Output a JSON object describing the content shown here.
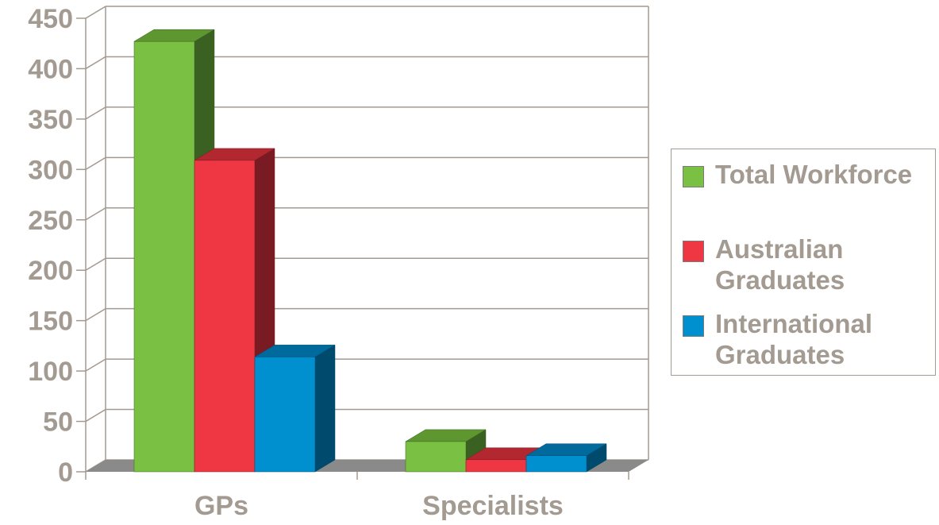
{
  "chart_data": {
    "type": "bar",
    "title": "",
    "xlabel": "",
    "ylabel": "",
    "categories": [
      "GPs",
      "Specialists"
    ],
    "series": [
      {
        "name": "Total Workforce",
        "values": [
          427,
          30
        ],
        "color": "#7ac143",
        "side_color": "#3b6122",
        "top_color": "#5e9630"
      },
      {
        "name": "Australian Graduates",
        "values": [
          309,
          12
        ],
        "color": "#ee3742",
        "side_color": "#7a1a22",
        "top_color": "#b32830"
      },
      {
        "name": "International Graduates",
        "values": [
          114,
          16
        ],
        "color": "#0090cf",
        "side_color": "#004a6e",
        "top_color": "#006a9c"
      }
    ],
    "ylim": [
      0,
      450
    ],
    "yticks": [
      0,
      50,
      100,
      150,
      200,
      250,
      300,
      350,
      400,
      450
    ],
    "grid": true,
    "legend_position": "right",
    "text_color": "#a39a91",
    "grid_color": "#a39a91",
    "floor_color": "#8a8a8a"
  }
}
